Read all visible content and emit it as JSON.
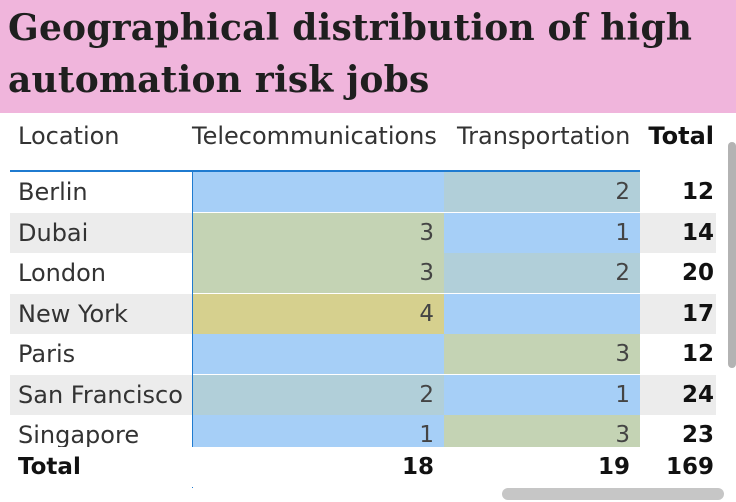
{
  "title": "Geographical distribution of high automation risk jobs",
  "colors": {
    "title_bg": "#f0b5dc",
    "accent_line": "#1f7bd0",
    "scale": {
      "1": "#a6cff7",
      "2": "#b1cfd9",
      "3": "#c4d3b4",
      "4": "#d6d08e",
      "blank": "#a6cff7"
    }
  },
  "table": {
    "headers": {
      "location": "Location",
      "telecom": "Telecommunications",
      "transport": "Transportation",
      "total": "Total"
    },
    "rows": [
      {
        "location": "Berlin",
        "telecom": "",
        "transport": "2",
        "total": "12"
      },
      {
        "location": "Dubai",
        "telecom": "3",
        "transport": "1",
        "total": "14"
      },
      {
        "location": "London",
        "telecom": "3",
        "transport": "2",
        "total": "20"
      },
      {
        "location": "New York",
        "telecom": "4",
        "transport": "",
        "total": "17"
      },
      {
        "location": "Paris",
        "telecom": "",
        "transport": "3",
        "total": "12"
      },
      {
        "location": "San Francisco",
        "telecom": "2",
        "transport": "1",
        "total": "24"
      },
      {
        "location": "Singapore",
        "telecom": "1",
        "transport": "3",
        "total": "23"
      }
    ],
    "totals": {
      "label": "Total",
      "telecom": "18",
      "transport": "19",
      "total": "169"
    }
  }
}
